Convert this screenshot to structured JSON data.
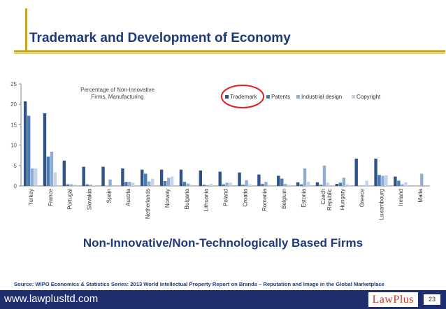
{
  "slide": {
    "title": "Trademark and Development of Economy",
    "subtitle": "Non-Innovative/Non-Technologically Based Firms",
    "source": "Source: WIPO Economics & Statistics Series: 2013 World Intellectual Property Report on Brands – Reputation and Image in the Global Marketplace",
    "website": "www.lawplusltd.com",
    "logo": "LawPlus",
    "page_number": "23"
  },
  "colors": {
    "title": "#1f3a78",
    "accent_rule": "#c9a227",
    "footer_bg": "#1e2e6e",
    "highlight_circle": "#e02020"
  },
  "chart_data": {
    "type": "bar",
    "title_lines": [
      "Percentage of Non-Innovative",
      "Firms, Manufacturing"
    ],
    "ylim": [
      0,
      25
    ],
    "yticks": [
      0,
      5,
      10,
      15,
      20,
      25
    ],
    "grid": false,
    "legend_position": "top-right",
    "highlighted_series": "Trademark",
    "categories": [
      "Turkey",
      "France",
      "Portugal",
      "Slovakia",
      "Spain",
      "Austria",
      "Netherlands",
      "Norway",
      "Bulgaria",
      "Lithuania",
      "Poland",
      "Croatia",
      "Romania",
      "Belgium",
      "Estonia",
      "Czech Republic",
      "Hungary",
      "Greece",
      "Luxembourg",
      "Ireland",
      "Malta"
    ],
    "series": [
      {
        "name": "Trademark",
        "color": "#2e5487",
        "values": [
          20.7,
          17.8,
          6.2,
          4.7,
          4.7,
          4.3,
          4.0,
          4.0,
          4.0,
          3.8,
          3.5,
          3.3,
          2.8,
          2.5,
          0.9,
          0.9,
          0.5,
          6.7,
          6.7,
          2.3,
          0
        ]
      },
      {
        "name": "Patents",
        "color": "#4a7ab5",
        "values": [
          17.2,
          7.2,
          0.4,
          0.4,
          0,
          1.0,
          3.0,
          1.2,
          1.0,
          0.3,
          0.4,
          0.3,
          0.5,
          1.8,
          0.4,
          0.3,
          0.8,
          0,
          2.7,
          1.3,
          0
        ]
      },
      {
        "name": "Industrial design",
        "color": "#8fadd3",
        "values": [
          4.3,
          8.4,
          0.4,
          0.3,
          1.6,
          1.0,
          1.1,
          2.0,
          0.6,
          0.2,
          0.8,
          1.4,
          1.0,
          0.5,
          4.3,
          5.0,
          2.0,
          0,
          2.5,
          0.4,
          3.0
        ]
      },
      {
        "name": "Copyright",
        "color": "#c3d4ea",
        "values": [
          4.3,
          3.3,
          0.3,
          0.2,
          0,
          0.8,
          1.8,
          2.3,
          0.3,
          0.5,
          0.8,
          0.4,
          0.3,
          0.3,
          1.0,
          0.8,
          0.4,
          1.3,
          2.6,
          0.9,
          0
        ]
      }
    ]
  }
}
